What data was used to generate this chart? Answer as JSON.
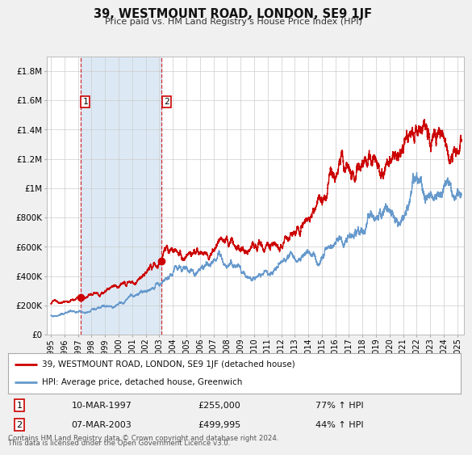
{
  "title": "39, WESTMOUNT ROAD, LONDON, SE9 1JF",
  "subtitle": "Price paid vs. HM Land Registry's House Price Index (HPI)",
  "xlim": [
    1994.7,
    2025.5
  ],
  "ylim": [
    0,
    1900000
  ],
  "yticks": [
    0,
    200000,
    400000,
    600000,
    800000,
    1000000,
    1200000,
    1400000,
    1600000,
    1800000
  ],
  "ytick_labels": [
    "£0",
    "£200K",
    "£400K",
    "£600K",
    "£800K",
    "£1M",
    "£1.2M",
    "£1.4M",
    "£1.6M",
    "£1.8M"
  ],
  "red_line_color": "#cc0000",
  "blue_line_color": "#6699cc",
  "sale1_date": 1997.19,
  "sale1_price": 255000,
  "sale1_label": "1",
  "sale1_display": "10-MAR-1997",
  "sale1_amount": "£255,000",
  "sale1_hpi": "77% ↑ HPI",
  "sale2_date": 2003.18,
  "sale2_price": 499995,
  "sale2_label": "2",
  "sale2_display": "07-MAR-2003",
  "sale2_amount": "£499,995",
  "sale2_hpi": "44% ↑ HPI",
  "shade_color": "#dce9f5",
  "vline_color": "#cc0000",
  "legend_line1": "39, WESTMOUNT ROAD, LONDON, SE9 1JF (detached house)",
  "legend_line2": "HPI: Average price, detached house, Greenwich",
  "footer1": "Contains HM Land Registry data © Crown copyright and database right 2024.",
  "footer2": "This data is licensed under the Open Government Licence v3.0.",
  "bg_color": "#f0f0f0",
  "plot_bg_color": "#ffffff",
  "grid_color": "#cccccc"
}
